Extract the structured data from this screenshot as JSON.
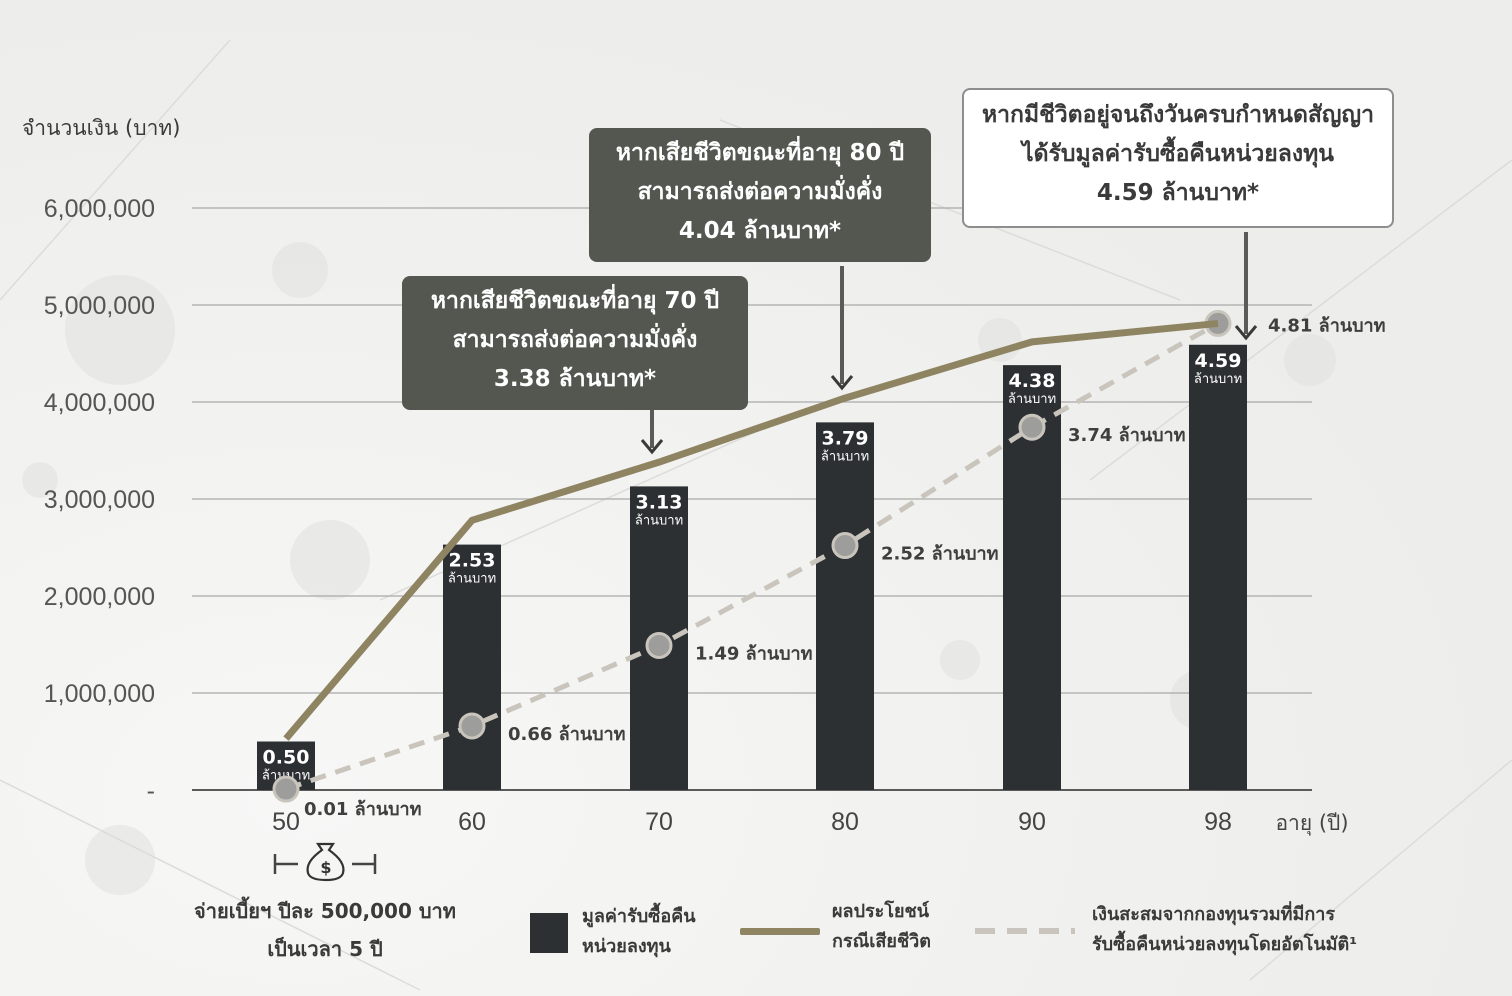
{
  "chart_data": {
    "type": "bar",
    "ylabel": "จำนวนเงิน (บาท)",
    "xlabel": "อายุ (ปี)",
    "ylim": [
      0,
      6000000
    ],
    "yticks": [
      0,
      1000000,
      2000000,
      3000000,
      4000000,
      5000000,
      6000000
    ],
    "ytick_labels": [
      "-",
      "1,000,000",
      "2,000,000",
      "3,000,000",
      "4,000,000",
      "5,000,000",
      "6,000,000"
    ],
    "categories": [
      "50",
      "60",
      "70",
      "80",
      "90",
      "98"
    ],
    "grid": true,
    "series": [
      {
        "name": "มูลค่ารับซื้อคืนหน่วยลงทุน",
        "kind": "bar",
        "color": "#2c3033",
        "values": [
          500000,
          2530000,
          3130000,
          3790000,
          4380000,
          4590000
        ],
        "value_labels": [
          "0.50",
          "2.53",
          "3.13",
          "3.79",
          "4.38",
          "4.59"
        ],
        "unit_label": "ล้านบาท"
      },
      {
        "name": "ผลประโยชน์กรณีเสียชีวิต",
        "kind": "line",
        "color": "#8f8461",
        "values": [
          530000,
          2780000,
          3380000,
          4040000,
          4620000,
          4810000
        ],
        "end_label": "4.81 ล้านบาท"
      },
      {
        "name": "เงินสะสมจากกองทุนรวมที่มีการรับซื้อคืนหน่วยลงทุนโดยอัตโนมัติ",
        "kind": "dashed-line",
        "color": "#c9c5bd",
        "values": [
          10000,
          660000,
          1490000,
          2520000,
          3740000,
          4810000
        ],
        "point_labels": [
          "0.01 ล้านบาท",
          "0.66 ล้านบาท",
          "1.49 ล้านบาท",
          "2.52 ล้านบาท",
          "3.74 ล้านบาท",
          ""
        ]
      }
    ]
  },
  "callouts": {
    "age70": [
      "หากเสียชีวิตขณะที่อายุ 70 ปี",
      "สามารถส่งต่อความมั่งคั่ง",
      "3.38 ล้านบาท*"
    ],
    "age80": [
      "หากเสียชีวิตขณะที่อายุ 80 ปี",
      "สามารถส่งต่อความมั่งคั่ง",
      "4.04 ล้านบาท*"
    ],
    "maturity": [
      "หากมีชีวิตอยู่จนถึงวันครบกำหนดสัญญา",
      "ได้รับมูลค่ารับซื้อคืนหน่วยลงทุน",
      "4.59 ล้านบาท*"
    ]
  },
  "payment_note": [
    "จ่ายเบี้ยฯ ปีละ 500,000 บาท",
    "เป็นเวลา 5 ปี"
  ],
  "legend": {
    "bar": [
      "มูลค่ารับซื้อคืน",
      "หน่วยลงทุน"
    ],
    "line": [
      "ผลประโยชน์",
      "กรณีเสียชีวิต"
    ],
    "dashed": [
      "เงินสะสมจากกองทุนรวมที่มีการ",
      "รับซื้อคืนหน่วยลงทุนโดยอัตโนมัติ¹"
    ]
  },
  "icons": {
    "money_bag": "money-bag-icon"
  }
}
